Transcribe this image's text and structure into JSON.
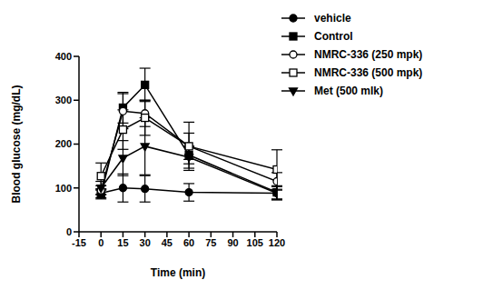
{
  "chart_data": {
    "type": "line",
    "x_label": "Time (min)",
    "y_label": "Blood glucose (mg/dL)",
    "x": [
      0,
      15,
      30,
      60,
      120
    ],
    "xlim": [
      -15,
      120
    ],
    "xticks": [
      -15,
      0,
      15,
      30,
      45,
      60,
      75,
      90,
      105,
      120
    ],
    "ylim": [
      0,
      400
    ],
    "yticks": [
      0,
      100,
      200,
      300,
      400
    ],
    "grid": false,
    "legend": "right",
    "series": [
      {
        "name": "vehicle",
        "color": "#000000",
        "marker": "circle",
        "values": [
          88,
          100,
          98,
          90,
          88
        ],
        "errors": [
          10,
          32,
          30,
          20,
          15
        ]
      },
      {
        "name": "Control",
        "color": "#000000",
        "marker": "square",
        "values": [
          85,
          283,
          335,
          175,
          90
        ],
        "errors": [
          10,
          35,
          38,
          20,
          15
        ]
      },
      {
        "name": "NMRC-336 (250 mpk)",
        "color": "#000000",
        "marker": "open-circle",
        "values": [
          95,
          275,
          270,
          195,
          115
        ],
        "errors": [
          10,
          40,
          30,
          30,
          20
        ]
      },
      {
        "name": "NMRC-336 (500 mpk)",
        "color": "#000000",
        "marker": "open-square",
        "values": [
          127,
          233,
          260,
          195,
          142
        ],
        "errors": [
          30,
          45,
          40,
          55,
          45
        ]
      },
      {
        "name": "Met (500 mlk)",
        "color": "#000000",
        "marker": "triangle-down",
        "values": [
          100,
          168,
          195,
          170,
          88
        ],
        "errors": [
          15,
          40,
          65,
          25,
          15
        ]
      }
    ]
  }
}
